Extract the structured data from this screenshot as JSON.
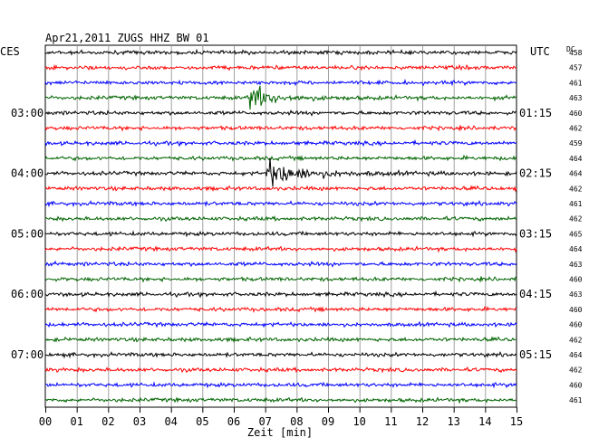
{
  "chart_data": {
    "type": "line",
    "title": "Apr21,2011   ZUGS HHZ BW 01",
    "left_axis_label": "CES",
    "right_axis_label": "UTC",
    "dc_label": "DC",
    "xlabel": "Zeit [min]",
    "x_ticks": [
      "00",
      "01",
      "02",
      "03",
      "04",
      "05",
      "06",
      "07",
      "08",
      "09",
      "10",
      "11",
      "12",
      "13",
      "14",
      "15"
    ],
    "xlim": [
      0,
      15
    ],
    "grid": true,
    "trace_colors": [
      "#000000",
      "#ff0000",
      "#0000ff",
      "#006400"
    ],
    "rows": [
      {
        "local": "",
        "utc": "",
        "dc": "458"
      },
      {
        "local": "",
        "utc": "",
        "dc": "457"
      },
      {
        "local": "",
        "utc": "",
        "dc": "461"
      },
      {
        "local": "",
        "utc": "",
        "dc": "463"
      },
      {
        "local": "03:00",
        "utc": "01:15",
        "dc": "460"
      },
      {
        "local": "",
        "utc": "",
        "dc": "462"
      },
      {
        "local": "",
        "utc": "",
        "dc": "459"
      },
      {
        "local": "",
        "utc": "",
        "dc": "464"
      },
      {
        "local": "04:00",
        "utc": "02:15",
        "dc": "464"
      },
      {
        "local": "",
        "utc": "",
        "dc": "462"
      },
      {
        "local": "",
        "utc": "",
        "dc": "461"
      },
      {
        "local": "",
        "utc": "",
        "dc": "462"
      },
      {
        "local": "05:00",
        "utc": "03:15",
        "dc": "465"
      },
      {
        "local": "",
        "utc": "",
        "dc": "464"
      },
      {
        "local": "",
        "utc": "",
        "dc": "463"
      },
      {
        "local": "",
        "utc": "",
        "dc": "460"
      },
      {
        "local": "06:00",
        "utc": "04:15",
        "dc": "463"
      },
      {
        "local": "",
        "utc": "",
        "dc": "460"
      },
      {
        "local": "",
        "utc": "",
        "dc": "460"
      },
      {
        "local": "",
        "utc": "",
        "dc": "462"
      },
      {
        "local": "07:00",
        "utc": "05:15",
        "dc": "464"
      },
      {
        "local": "",
        "utc": "",
        "dc": "462"
      },
      {
        "local": "",
        "utc": "",
        "dc": "460"
      },
      {
        "local": "",
        "utc": "",
        "dc": "461"
      }
    ],
    "events": [
      {
        "row": 3,
        "start_min": 6.5,
        "type": "earthquake"
      },
      {
        "row": 8,
        "start_min": 7.0,
        "type": "earthquake"
      }
    ]
  }
}
